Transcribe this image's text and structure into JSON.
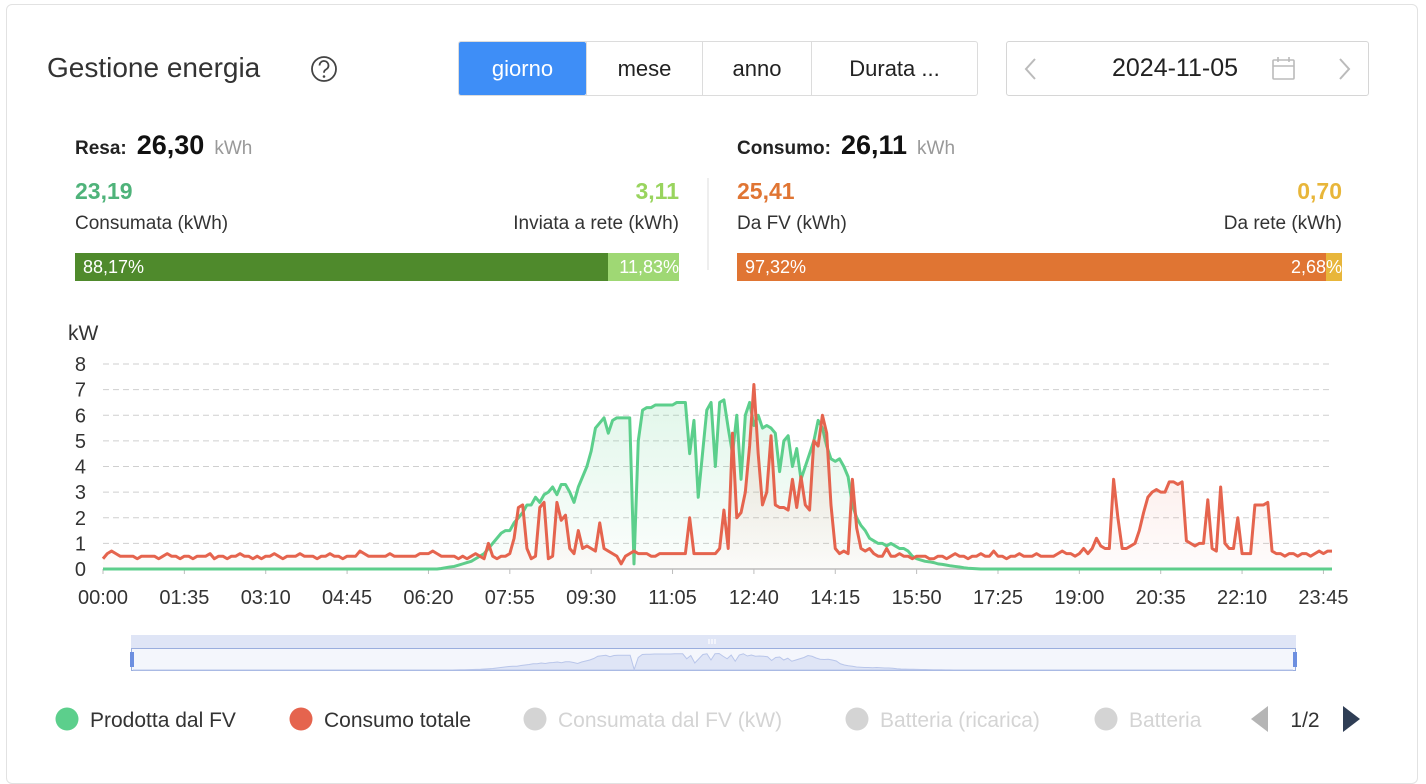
{
  "header": {
    "title": "Gestione energia",
    "tabs": [
      "giorno",
      "mese",
      "anno",
      "Durata ..."
    ],
    "active_tab": 0,
    "date": "2024-11-05"
  },
  "summary": {
    "yield": {
      "label": "Resa:",
      "total": "26,30",
      "unit": "kWh",
      "left": {
        "value": "23,19",
        "label": "Consumata (kWh)",
        "color": "#4fb37a"
      },
      "right": {
        "value": "3,11",
        "label": "Inviata a rete (kWh)",
        "color": "#99d45e"
      },
      "shares": [
        {
          "value": 88.17,
          "label": "88,17%",
          "color": "#4f8a2c"
        },
        {
          "value": 11.83,
          "label": "11,83%",
          "color": "#9fd874"
        }
      ]
    },
    "consumption": {
      "label": "Consumo:",
      "total": "26,11",
      "unit": "kWh",
      "left": {
        "value": "25,41",
        "label": "Da FV (kWh)",
        "color": "#e07533"
      },
      "right": {
        "value": "0,70",
        "label": "Da rete (kWh)",
        "color": "#e8b63a"
      },
      "shares": [
        {
          "value": 97.32,
          "label": "97,32%",
          "color": "#e07533"
        },
        {
          "value": 2.68,
          "label": "2,68%",
          "color": "#e8b63a"
        }
      ]
    }
  },
  "chart_data": {
    "type": "line",
    "y_label": "kW",
    "grid": true,
    "area": true,
    "ylim": [
      0,
      8
    ],
    "yticks": [
      0,
      1,
      2,
      3,
      4,
      5,
      6,
      7,
      8
    ],
    "categories": [
      "00:00",
      null,
      null,
      null,
      null,
      null,
      null,
      null,
      null,
      null,
      null,
      null,
      null,
      null,
      null,
      null,
      null,
      null,
      null,
      "01:35",
      null,
      null,
      null,
      null,
      null,
      null,
      null,
      null,
      null,
      null,
      null,
      null,
      null,
      null,
      null,
      null,
      null,
      null,
      "03:10",
      null,
      null,
      null,
      null,
      null,
      null,
      null,
      null,
      null,
      null,
      null,
      null,
      null,
      null,
      null,
      null,
      null,
      null,
      "04:45",
      null,
      null,
      null,
      null,
      null,
      null,
      null,
      null,
      null,
      null,
      null,
      null,
      null,
      null,
      null,
      null,
      null,
      null,
      "06:20",
      null,
      null,
      null,
      null,
      null,
      null,
      null,
      null,
      null,
      null,
      null,
      null,
      null,
      null,
      null,
      null,
      null,
      null,
      "07:55",
      null,
      null,
      null,
      null,
      null,
      null,
      null,
      null,
      null,
      null,
      null,
      null,
      null,
      null,
      null,
      null,
      null,
      null,
      "09:30",
      null,
      null,
      null,
      null,
      null,
      null,
      null,
      null,
      null,
      null,
      null,
      null,
      null,
      null,
      null,
      null,
      null,
      null,
      "11:05",
      null,
      null,
      null,
      null,
      null,
      null,
      null,
      null,
      null,
      null,
      null,
      null,
      null,
      null,
      null,
      null,
      null,
      null,
      "12:40",
      null,
      null,
      null,
      null,
      null,
      null,
      null,
      null,
      null,
      null,
      null,
      null,
      null,
      null,
      null,
      null,
      null,
      null,
      "14:15",
      null,
      null,
      null,
      null,
      null,
      null,
      null,
      null,
      null,
      null,
      null,
      null,
      null,
      null,
      null,
      null,
      null,
      null,
      "15:50",
      null,
      null,
      null,
      null,
      null,
      null,
      null,
      null,
      null,
      null,
      null,
      null,
      null,
      null,
      null,
      null,
      null,
      null,
      "17:25",
      null,
      null,
      null,
      null,
      null,
      null,
      null,
      null,
      null,
      null,
      null,
      null,
      null,
      null,
      null,
      null,
      null,
      null,
      "19:00",
      null,
      null,
      null,
      null,
      null,
      null,
      null,
      null,
      null,
      null,
      null,
      null,
      null,
      null,
      null,
      null,
      null,
      null,
      "20:35",
      null,
      null,
      null,
      null,
      null,
      null,
      null,
      null,
      null,
      null,
      null,
      null,
      null,
      null,
      null,
      null,
      null,
      null,
      "22:10",
      null,
      null,
      null,
      null,
      null,
      null,
      null,
      null,
      null,
      null,
      null,
      null,
      null,
      null,
      null,
      null,
      null,
      null,
      "23:45",
      null,
      null
    ],
    "series": [
      {
        "name": "Prodotta dal FV",
        "color": "#5ccf8c",
        "values": [
          0,
          0,
          0,
          0,
          0,
          0,
          0,
          0,
          0,
          0,
          0,
          0,
          0,
          0,
          0,
          0,
          0,
          0,
          0,
          0,
          0,
          0,
          0,
          0,
          0,
          0,
          0,
          0,
          0,
          0,
          0,
          0,
          0,
          0,
          0,
          0,
          0,
          0,
          0,
          0,
          0,
          0,
          0,
          0,
          0,
          0,
          0,
          0,
          0,
          0,
          0,
          0,
          0,
          0,
          0,
          0,
          0,
          0,
          0,
          0,
          0,
          0,
          0,
          0,
          0,
          0,
          0,
          0,
          0,
          0,
          0,
          0,
          0,
          0,
          0,
          0,
          0,
          0,
          0,
          0.02,
          0.05,
          0.08,
          0.1,
          0.15,
          0.2,
          0.25,
          0.3,
          0.4,
          0.5,
          0.6,
          0.8,
          1.0,
          1.2,
          1.4,
          1.5,
          1.5,
          1.8,
          2.0,
          2.2,
          2.5,
          2.5,
          2.8,
          2.6,
          2.9,
          3.0,
          3.2,
          2.9,
          3.3,
          3.3,
          3.0,
          2.6,
          3.2,
          3.6,
          4.0,
          4.6,
          5.5,
          5.7,
          5.9,
          5.3,
          5.8,
          5.9,
          5.9,
          5.9,
          5.9,
          0.2,
          5.0,
          6.2,
          6.3,
          6.3,
          6.4,
          6.4,
          6.4,
          6.4,
          6.4,
          6.5,
          6.5,
          6.5,
          4.5,
          5.8,
          2.8,
          4.5,
          6.2,
          6.5,
          4.0,
          6.5,
          6.6,
          5.5,
          4.5,
          6.0,
          3.5,
          6.0,
          6.5,
          5.6,
          6.0,
          5.5,
          5.6,
          5.5,
          5.3,
          3.8,
          5.0,
          5.2,
          4.0,
          4.7,
          3.5,
          4.0,
          4.5,
          5.0,
          5.8,
          5.5,
          4.8,
          4.3,
          4.2,
          4.3,
          4.0,
          3.6,
          2.5,
          2.0,
          1.7,
          1.5,
          1.2,
          1.1,
          1.0,
          1.0,
          0.9,
          1.0,
          0.9,
          0.8,
          0.8,
          0.7,
          0.5,
          0.4,
          0.35,
          0.3,
          0.28,
          0.25,
          0.2,
          0.18,
          0.15,
          0.12,
          0.1,
          0.08,
          0.05,
          0.03,
          0.02,
          0.01,
          0,
          0,
          0,
          0,
          0,
          0,
          0,
          0,
          0,
          0,
          0,
          0,
          0,
          0,
          0,
          0,
          0,
          0,
          0,
          0,
          0,
          0,
          0,
          0,
          0,
          0,
          0,
          0,
          0,
          0,
          0,
          0,
          0,
          0,
          0,
          0,
          0,
          0,
          0,
          0,
          0,
          0,
          0,
          0,
          0,
          0,
          0,
          0,
          0,
          0,
          0,
          0,
          0,
          0,
          0,
          0,
          0,
          0,
          0,
          0,
          0,
          0,
          0,
          0,
          0,
          0,
          0,
          0,
          0,
          0,
          0,
          0,
          0,
          0,
          0,
          0,
          0,
          0,
          0,
          0,
          0,
          0,
          0
        ]
      },
      {
        "name": "Consumo totale",
        "color": "#e5644e",
        "values": [
          0.4,
          0.6,
          0.7,
          0.6,
          0.5,
          0.5,
          0.5,
          0.5,
          0.4,
          0.5,
          0.5,
          0.5,
          0.5,
          0.4,
          0.5,
          0.6,
          0.5,
          0.5,
          0.4,
          0.5,
          0.5,
          0.4,
          0.5,
          0.5,
          0.5,
          0.6,
          0.4,
          0.5,
          0.5,
          0.4,
          0.5,
          0.5,
          0.6,
          0.5,
          0.5,
          0.4,
          0.5,
          0.4,
          0.5,
          0.5,
          0.6,
          0.5,
          0.4,
          0.5,
          0.5,
          0.5,
          0.6,
          0.5,
          0.5,
          0.5,
          0.4,
          0.5,
          0.5,
          0.6,
          0.5,
          0.5,
          0.4,
          0.5,
          0.5,
          0.5,
          0.7,
          0.6,
          0.5,
          0.5,
          0.5,
          0.5,
          0.5,
          0.6,
          0.5,
          0.5,
          0.5,
          0.5,
          0.5,
          0.5,
          0.6,
          0.6,
          0.6,
          0.7,
          0.6,
          0.5,
          0.5,
          0.5,
          0.5,
          0.4,
          0.5,
          0.4,
          0.5,
          0.6,
          0.5,
          0.4,
          1.0,
          0.5,
          0.4,
          0.5,
          0.5,
          0.6,
          1.2,
          2.4,
          2.5,
          0.8,
          0.4,
          0.5,
          2.4,
          2.6,
          0.4,
          0.5,
          2.6,
          1.9,
          2.1,
          0.8,
          0.6,
          1.5,
          0.8,
          0.9,
          0.8,
          0.7,
          1.8,
          0.8,
          0.7,
          0.6,
          0.5,
          0.2,
          0.5,
          0.6,
          0.7,
          0.6,
          0.6,
          0.6,
          0.5,
          0.5,
          0.6,
          0.6,
          0.6,
          0.6,
          0.6,
          0.6,
          0.6,
          2.0,
          0.6,
          0.6,
          0.6,
          0.6,
          0.6,
          0.6,
          0.8,
          2.3,
          0.8,
          5.3,
          2.0,
          2.2,
          3.0,
          4.8,
          7.2,
          4.5,
          2.5,
          3.0,
          5.2,
          2.5,
          2.4,
          2.4,
          2.3,
          3.5,
          2.4,
          3.6,
          2.5,
          2.3,
          5.0,
          4.8,
          6.0,
          5.3,
          2.5,
          0.8,
          0.6,
          0.7,
          0.6,
          3.5,
          1.6,
          0.8,
          0.7,
          0.8,
          0.6,
          0.5,
          0.5,
          0.8,
          0.5,
          0.5,
          0.6,
          0.5,
          0.5,
          0.4,
          0.5,
          0.5,
          0.5,
          0.4,
          0.4,
          0.5,
          0.5,
          0.4,
          0.5,
          0.6,
          0.5,
          0.5,
          0.4,
          0.5,
          0.5,
          0.6,
          0.5,
          0.5,
          0.7,
          0.5,
          0.5,
          0.4,
          0.5,
          0.5,
          0.6,
          0.5,
          0.5,
          0.5,
          0.6,
          0.5,
          0.5,
          0.5,
          0.5,
          0.6,
          0.7,
          0.6,
          0.6,
          0.5,
          0.6,
          0.8,
          0.6,
          0.8,
          1.2,
          0.9,
          0.8,
          0.8,
          3.5,
          2.0,
          0.8,
          0.8,
          0.9,
          1.0,
          1.5,
          2.2,
          2.8,
          3.0,
          3.1,
          3.0,
          3.0,
          3.4,
          3.4,
          3.3,
          3.4,
          1.1,
          1.0,
          0.9,
          1.0,
          1.0,
          2.7,
          0.8,
          0.7,
          3.2,
          1.0,
          0.8,
          0.8,
          2.0,
          0.6,
          0.6,
          0.6,
          2.5,
          2.5,
          2.5,
          2.6,
          0.7,
          0.6,
          0.6,
          0.5,
          0.6,
          0.6,
          0.5,
          0.6,
          0.6,
          0.5,
          0.6,
          0.7,
          0.6,
          0.7,
          0.7
        ]
      }
    ],
    "inactive_series": [
      "Consumata dal FV (kW)",
      "Batteria (ricarica)",
      "Batteria"
    ],
    "inactive_color": "#d4d4d4",
    "legend_page": "1/2"
  }
}
